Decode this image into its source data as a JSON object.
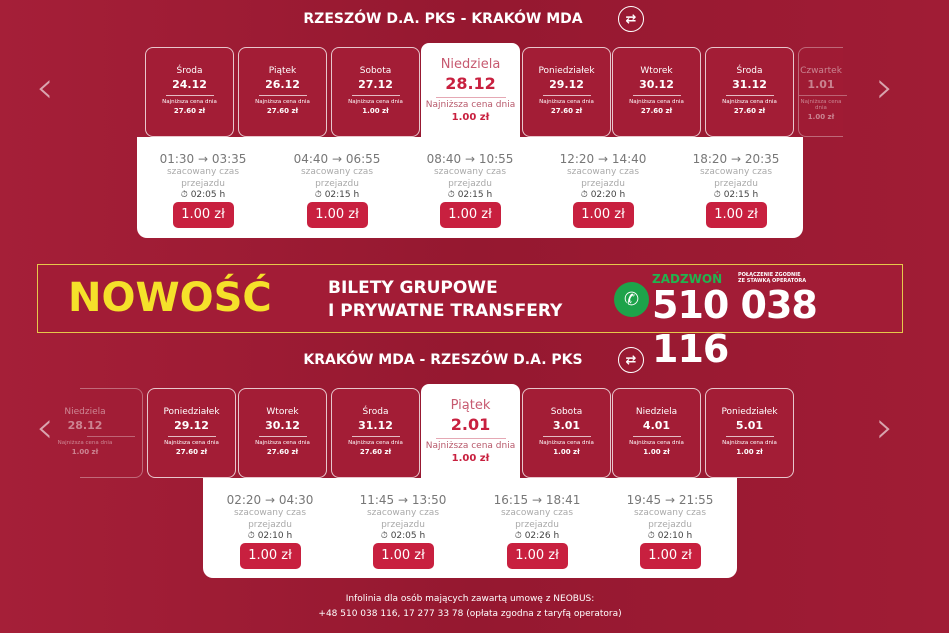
{
  "route1": {
    "title": "RZESZÓW D.A. PKS - KRAKÓW MDA",
    "dates": [
      {
        "day": "Środa",
        "date": "24.12",
        "label": "Najniższa cena dnia",
        "price": "27.60 zł"
      },
      {
        "day": "Piątek",
        "date": "26.12",
        "label": "Najniższa cena dnia",
        "price": "27.60 zł"
      },
      {
        "day": "Sobota",
        "date": "27.12",
        "label": "Najniższa cena dnia",
        "price": "1.00 zł"
      },
      {
        "day": "Niedziela",
        "date": "28.12",
        "label": "Najniższa cena dnia",
        "price": "1.00 zł",
        "active": true
      },
      {
        "day": "Poniedziałek",
        "date": "29.12",
        "label": "Najniższa cena dnia",
        "price": "27.60 zł"
      },
      {
        "day": "Wtorek",
        "date": "30.12",
        "label": "Najniższa cena dnia",
        "price": "27.60 zł"
      },
      {
        "day": "Środa",
        "date": "31.12",
        "label": "Najniższa cena dnia",
        "price": "27.60 zł"
      },
      {
        "day": "Czwartek",
        "date": "1.01",
        "label": "Najniższa cena dnia",
        "price": "1.00 zł",
        "partial": true
      }
    ],
    "trips": [
      {
        "time": "01:30 → 03:35",
        "label": "szacowany czas przejazdu",
        "duration": "02:05 h",
        "price": "1.00 zł"
      },
      {
        "time": "04:40 → 06:55",
        "label": "szacowany czas przejazdu",
        "duration": "02:15 h",
        "price": "1.00 zł"
      },
      {
        "time": "08:40 → 10:55",
        "label": "szacowany czas przejazdu",
        "duration": "02:15 h",
        "price": "1.00 zł"
      },
      {
        "time": "12:20 → 14:40",
        "label": "szacowany czas przejazdu",
        "duration": "02:20 h",
        "price": "1.00 zł"
      },
      {
        "time": "18:20 → 20:35",
        "label": "szacowany czas przejazdu",
        "duration": "02:15 h",
        "price": "1.00 zł"
      }
    ]
  },
  "banner": {
    "new": "NOWOŚĆ",
    "line1": "BILETY GRUPOWE",
    "line2": "I PRYWATNE TRANSFERY",
    "call": "ZADZWOŃ",
    "note1": "POŁĄCZENIE ZGODNIE",
    "note2": "ZE STAWKĄ OPERATORA",
    "phone": "510 038 116"
  },
  "route2": {
    "title": "KRAKÓW MDA - RZESZÓW D.A. PKS",
    "dates": [
      {
        "day": "Niedziela",
        "date": "28.12",
        "label": "Najniższa cena dnia",
        "price": "1.00 zł",
        "partial": true
      },
      {
        "day": "Poniedziałek",
        "date": "29.12",
        "label": "Najniższa cena dnia",
        "price": "27.60 zł"
      },
      {
        "day": "Wtorek",
        "date": "30.12",
        "label": "Najniższa cena dnia",
        "price": "27.60 zł"
      },
      {
        "day": "Środa",
        "date": "31.12",
        "label": "Najniższa cena dnia",
        "price": "27.60 zł"
      },
      {
        "day": "Piątek",
        "date": "2.01",
        "label": "Najniższa cena dnia",
        "price": "1.00 zł",
        "active": true
      },
      {
        "day": "Sobota",
        "date": "3.01",
        "label": "Najniższa cena dnia",
        "price": "1.00 zł"
      },
      {
        "day": "Niedziela",
        "date": "4.01",
        "label": "Najniższa cena dnia",
        "price": "1.00 zł"
      },
      {
        "day": "Poniedziałek",
        "date": "5.01",
        "label": "Najniższa cena dnia",
        "price": "1.00 zł"
      }
    ],
    "trips": [
      {
        "time": "02:20 → 04:30",
        "label": "szacowany czas przejazdu",
        "duration": "02:10 h",
        "price": "1.00 zł"
      },
      {
        "time": "11:45 → 13:50",
        "label": "szacowany czas przejazdu",
        "duration": "02:05 h",
        "price": "1.00 zł"
      },
      {
        "time": "16:15 → 18:41",
        "label": "szacowany czas przejazdu",
        "duration": "02:26 h",
        "price": "1.00 zł"
      },
      {
        "time": "19:45 → 21:55",
        "label": "szacowany czas przejazdu",
        "duration": "02:10 h",
        "price": "1.00 zł"
      }
    ]
  },
  "footer": {
    "line1": "Infolinia dla osób mających zawartą umowę z NEOBUS:",
    "line2": "+48 510 038 116, 17 277 33 78 (opłata zgodna z taryfą operatora)"
  },
  "colors": {
    "background": "#9c1b33",
    "accent": "#c8203f",
    "highlight": "#f5e12a",
    "phone": "#1da34a"
  }
}
